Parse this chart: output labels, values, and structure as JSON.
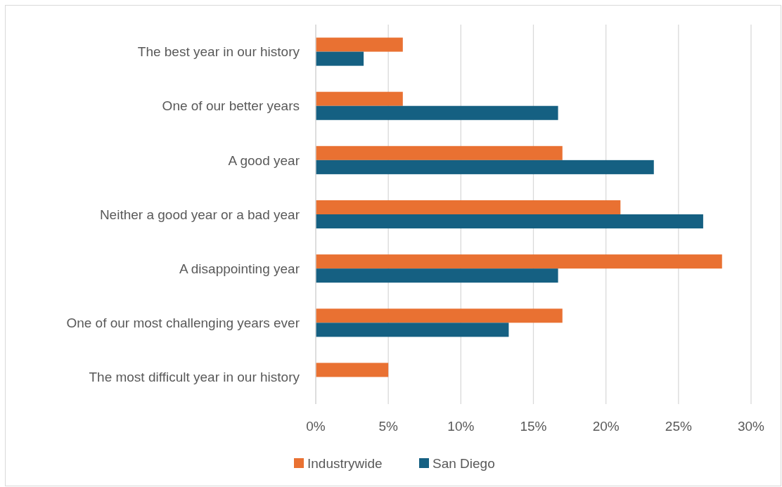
{
  "chart_data": {
    "type": "bar",
    "orientation": "horizontal",
    "categories": [
      "The best year in our history",
      "One of our better years",
      "A good year",
      "Neither a good year or a bad year",
      "A disappointing year",
      "One of our most challenging years ever",
      "The most difficult year in our history"
    ],
    "series": [
      {
        "name": "Industrywide",
        "color": "#e97132",
        "values": [
          6,
          6,
          17,
          21,
          28,
          17,
          5
        ]
      },
      {
        "name": "San Diego",
        "color": "#156082",
        "values": [
          3.3,
          16.7,
          23.3,
          26.7,
          16.7,
          13.3,
          0
        ]
      }
    ],
    "xlim": [
      0,
      30
    ],
    "xticks": [
      {
        "value": 0,
        "label": "0%"
      },
      {
        "value": 5,
        "label": "5%"
      },
      {
        "value": 10,
        "label": "10%"
      },
      {
        "value": 15,
        "label": "15%"
      },
      {
        "value": 20,
        "label": "20%"
      },
      {
        "value": 25,
        "label": "25%"
      },
      {
        "value": 30,
        "label": "30%"
      }
    ],
    "grid": "x",
    "legend": "bottom"
  }
}
